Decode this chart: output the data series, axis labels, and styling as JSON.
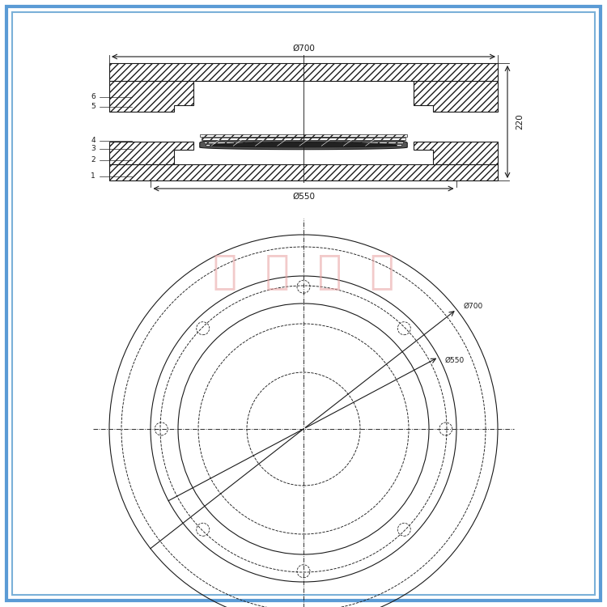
{
  "bg_color": "#ffffff",
  "border_color": "#5b9bd5",
  "border_inner_color": "#7ab0d8",
  "line_color": "#1a1a1a",
  "hatch_color": "#333333",
  "dim_color": "#333333",
  "watermark_color": "#e8a0a0",
  "title": "",
  "watermark_text": "正  华  橡  胶",
  "dim_phi700": "Ø700",
  "dim_phi550": "Ø550",
  "dim_220": "220",
  "dim_phi550b": "Ø550",
  "dim_phi700b": "Ø700",
  "numbers": [
    "1",
    "2",
    "3",
    "4",
    "5",
    "6"
  ],
  "line_width": 0.8
}
